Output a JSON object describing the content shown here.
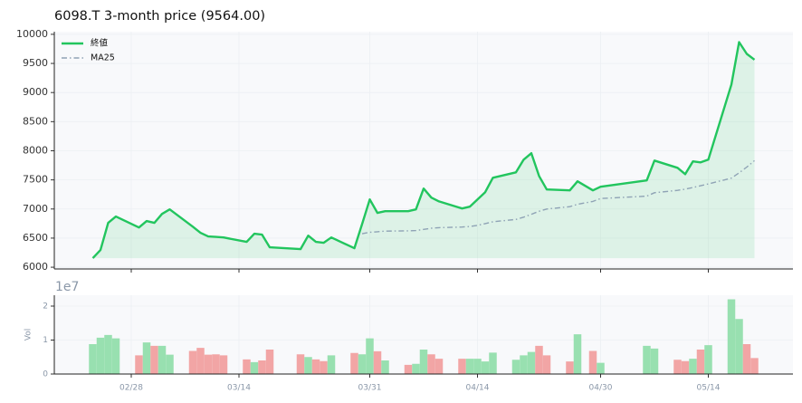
{
  "chart_data": [
    {
      "type": "line",
      "title": "6098.T  3-month price (9564.00)",
      "x": [
        "02/23",
        "02/24",
        "02/25",
        "02/26",
        "03/01",
        "03/02",
        "03/03",
        "03/04",
        "03/05",
        "03/08",
        "03/09",
        "03/10",
        "03/11",
        "03/12",
        "03/15",
        "03/16",
        "03/17",
        "03/18",
        "03/22",
        "03/23",
        "03/24",
        "03/25",
        "03/26",
        "03/29",
        "03/30",
        "03/31",
        "04/01",
        "04/02",
        "04/05",
        "04/06",
        "04/07",
        "04/08",
        "04/09",
        "04/12",
        "04/13",
        "04/14",
        "04/15",
        "04/16",
        "04/19",
        "04/20",
        "04/21",
        "04/22",
        "04/23",
        "04/26",
        "04/27",
        "04/29",
        "04/30",
        "05/06",
        "05/07",
        "05/10",
        "05/11",
        "05/12",
        "05/13",
        "05/14",
        "05/17",
        "05/18",
        "05/19",
        "05/20"
      ],
      "series": [
        {
          "name": "終値",
          "color": "#22c55e",
          "fill": true,
          "values": [
            6155,
            6295,
            6761,
            6870,
            6683,
            6792,
            6761,
            6916,
            6994,
            6697,
            6590,
            6528,
            6520,
            6512,
            6435,
            6575,
            6559,
            6342,
            6311,
            6543,
            6435,
            6419,
            6512,
            6326,
            6740,
            7165,
            6932,
            6963,
            6963,
            6994,
            7351,
            7196,
            7130,
            7009,
            7040,
            7165,
            7289,
            7537,
            7630,
            7848,
            7957,
            7568,
            7335,
            7320,
            7475,
            7320,
            7382,
            7491,
            7832,
            7708,
            7599,
            7817,
            7801,
            7848,
            9137,
            9866,
            9664,
            9564
          ]
        },
        {
          "name": "MA25",
          "color": "#8fa3b5",
          "dash": true,
          "values": [
            null,
            null,
            null,
            null,
            null,
            null,
            null,
            null,
            null,
            null,
            null,
            null,
            null,
            null,
            null,
            null,
            null,
            null,
            null,
            null,
            null,
            null,
            null,
            null,
            6575,
            6600,
            6610,
            6620,
            6625,
            6630,
            6650,
            6670,
            6680,
            6690,
            6700,
            6720,
            6750,
            6780,
            6820,
            6860,
            6910,
            6960,
            7000,
            7040,
            7080,
            7130,
            7180,
            7220,
            7280,
            7320,
            7340,
            7370,
            7400,
            7430,
            7530,
            7620,
            7720,
            7830
          ]
        }
      ],
      "xlim": [
        "02/18",
        "05/25"
      ],
      "xticks": [
        "02/28",
        "03/14",
        "03/31",
        "04/14",
        "04/30",
        "05/14"
      ],
      "ylim": [
        5970,
        10045
      ],
      "yticks": [
        6000,
        6500,
        7000,
        7500,
        8000,
        8500,
        9000,
        9500,
        10000
      ],
      "grid": true,
      "legend": "upper left"
    },
    {
      "type": "bar",
      "x": [
        "02/23",
        "02/24",
        "02/25",
        "02/26",
        "03/01",
        "03/02",
        "03/03",
        "03/04",
        "03/05",
        "03/08",
        "03/09",
        "03/10",
        "03/11",
        "03/12",
        "03/15",
        "03/16",
        "03/17",
        "03/18",
        "03/22",
        "03/23",
        "03/24",
        "03/25",
        "03/26",
        "03/29",
        "03/30",
        "03/31",
        "04/01",
        "04/02",
        "04/05",
        "04/06",
        "04/07",
        "04/08",
        "04/09",
        "04/12",
        "04/13",
        "04/14",
        "04/15",
        "04/16",
        "04/19",
        "04/20",
        "04/21",
        "04/22",
        "04/23",
        "04/26",
        "04/27",
        "04/29",
        "04/30",
        "05/06",
        "05/07",
        "05/10",
        "05/11",
        "05/12",
        "05/13",
        "05/14",
        "05/17",
        "05/18",
        "05/19",
        "05/20"
      ],
      "values": [
        0.88,
        1.07,
        1.15,
        1.05,
        0.55,
        0.93,
        0.83,
        0.83,
        0.57,
        0.68,
        0.77,
        0.57,
        0.58,
        0.55,
        0.43,
        0.35,
        0.4,
        0.72,
        0.58,
        0.5,
        0.43,
        0.38,
        0.55,
        0.62,
        0.58,
        1.05,
        0.67,
        0.4,
        0.27,
        0.3,
        0.72,
        0.58,
        0.45,
        0.45,
        0.45,
        0.45,
        0.37,
        0.63,
        0.42,
        0.55,
        0.65,
        0.83,
        0.55,
        0.37,
        1.17,
        0.68,
        0.33,
        0.83,
        0.75,
        0.42,
        0.38,
        0.45,
        0.72,
        0.85,
        2.2,
        1.62,
        0.88,
        0.47
      ],
      "colors": [
        "#98e0b0",
        "#98e0b0",
        "#98e0b0",
        "#98e0b0",
        "#f2a5a5",
        "#98e0b0",
        "#f2a5a5",
        "#98e0b0",
        "#98e0b0",
        "#f2a5a5",
        "#f2a5a5",
        "#f2a5a5",
        "#f2a5a5",
        "#f2a5a5",
        "#f2a5a5",
        "#98e0b0",
        "#f2a5a5",
        "#f2a5a5",
        "#f2a5a5",
        "#98e0b0",
        "#f2a5a5",
        "#f2a5a5",
        "#98e0b0",
        "#f2a5a5",
        "#98e0b0",
        "#98e0b0",
        "#f2a5a5",
        "#98e0b0",
        "#f2a5a5",
        "#98e0b0",
        "#98e0b0",
        "#f2a5a5",
        "#f2a5a5",
        "#f2a5a5",
        "#98e0b0",
        "#98e0b0",
        "#98e0b0",
        "#98e0b0",
        "#98e0b0",
        "#98e0b0",
        "#98e0b0",
        "#f2a5a5",
        "#f2a5a5",
        "#f2a5a5",
        "#98e0b0",
        "#f2a5a5",
        "#98e0b0",
        "#98e0b0",
        "#98e0b0",
        "#f2a5a5",
        "#f2a5a5",
        "#98e0b0",
        "#f2a5a5",
        "#98e0b0",
        "#98e0b0",
        "#98e0b0",
        "#f2a5a5",
        "#f2a5a5"
      ],
      "xlim": [
        "02/18",
        "05/25"
      ],
      "xticks": [
        "02/28",
        "03/14",
        "03/31",
        "04/14",
        "04/30",
        "05/14"
      ],
      "ylim": [
        0,
        2.32
      ],
      "yticks": [
        0,
        1,
        2
      ],
      "ylabel": "Vol",
      "offset_label": "1e7",
      "grid": true
    }
  ]
}
